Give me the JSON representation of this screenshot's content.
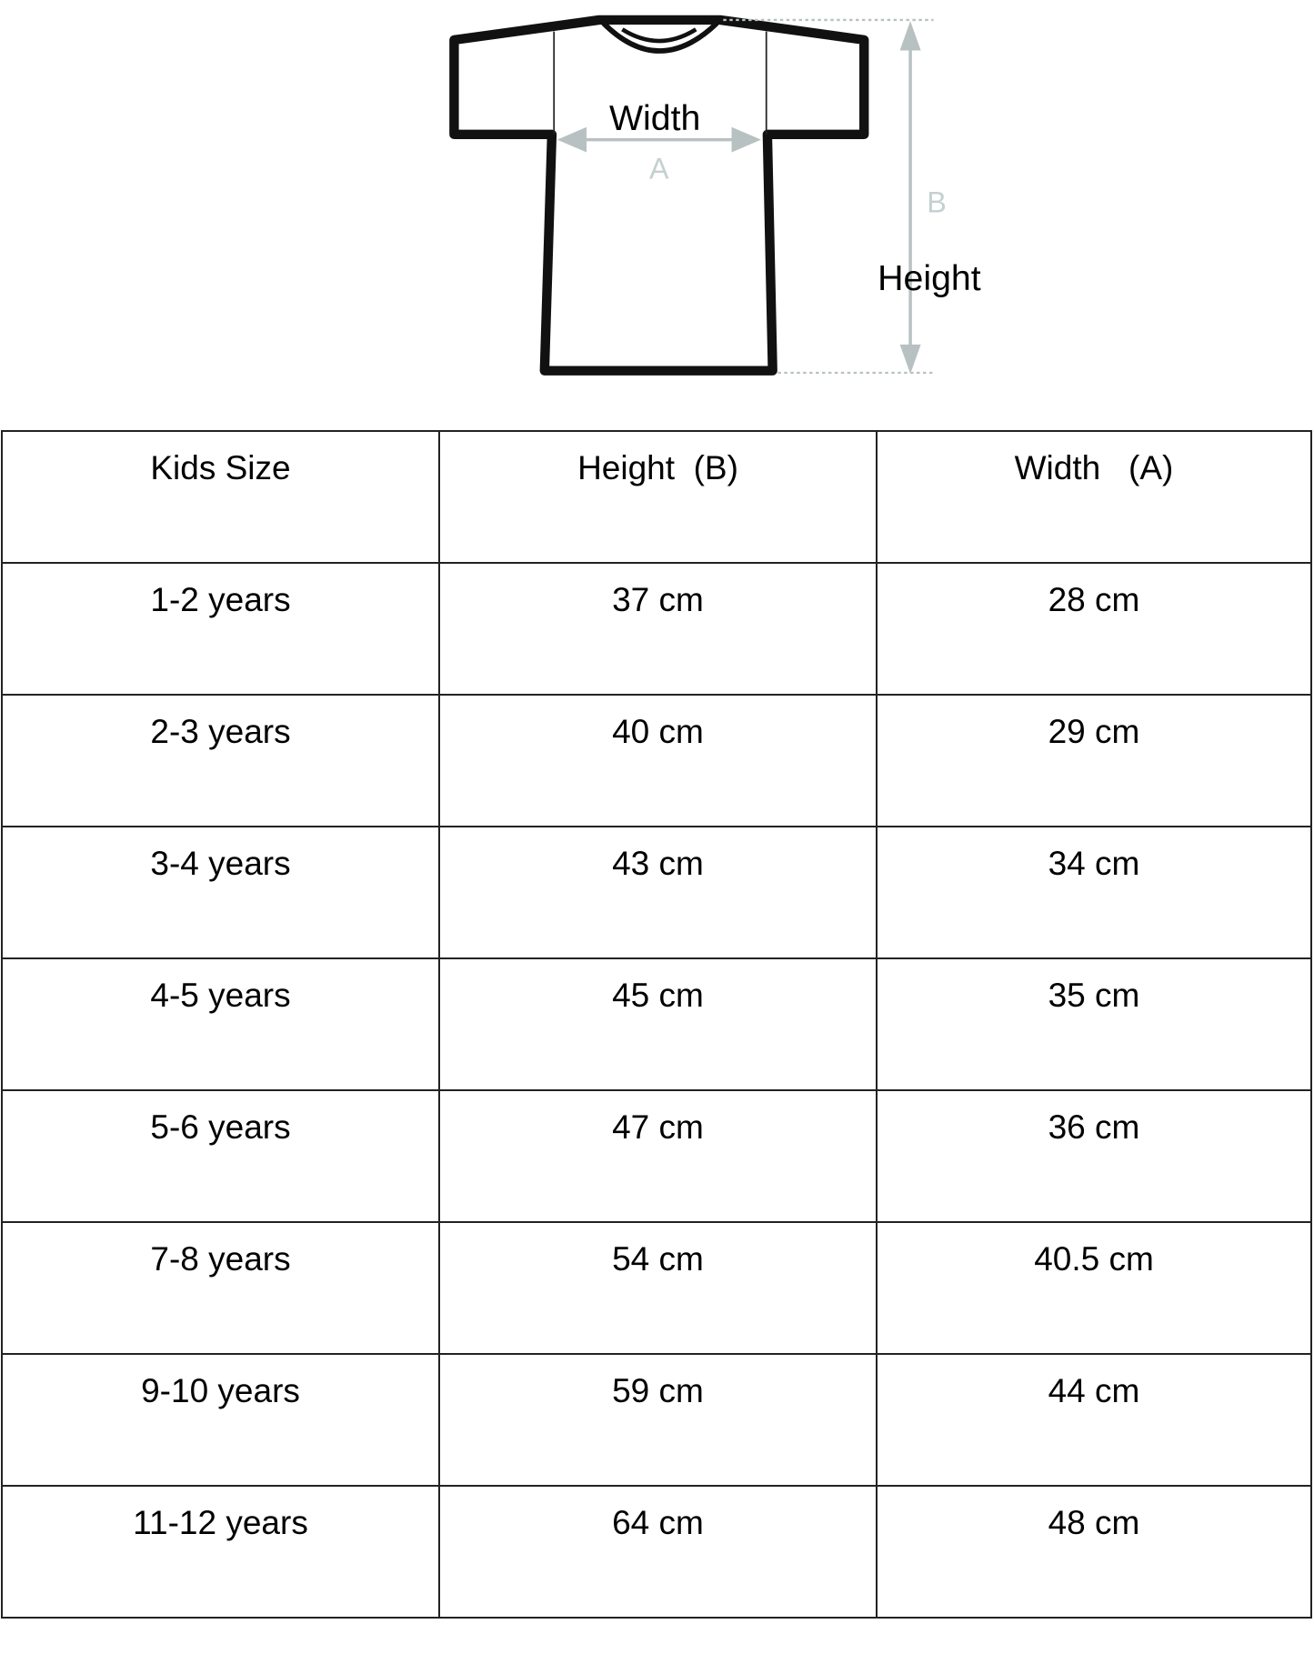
{
  "diagram": {
    "width_label": "Width",
    "width_letter": "A",
    "height_label": "Height",
    "height_letter": "B",
    "arrow_color": "#b8c1c1"
  },
  "table": {
    "headers": [
      "Kids Size",
      "Height  (B)",
      "Width   (A)"
    ],
    "rows": [
      [
        "1-2 years",
        "37 cm",
        "28 cm"
      ],
      [
        "2-3 years",
        "40 cm",
        "29 cm"
      ],
      [
        "3-4 years",
        "43 cm",
        "34 cm"
      ],
      [
        "4-5 years",
        "45 cm",
        "35 cm"
      ],
      [
        "5-6 years",
        "47 cm",
        "36 cm"
      ],
      [
        "7-8 years",
        "54 cm",
        "40.5 cm"
      ],
      [
        "9-10 years",
        "59 cm",
        "44 cm"
      ],
      [
        "11-12 years",
        "64 cm",
        "48 cm"
      ]
    ]
  }
}
